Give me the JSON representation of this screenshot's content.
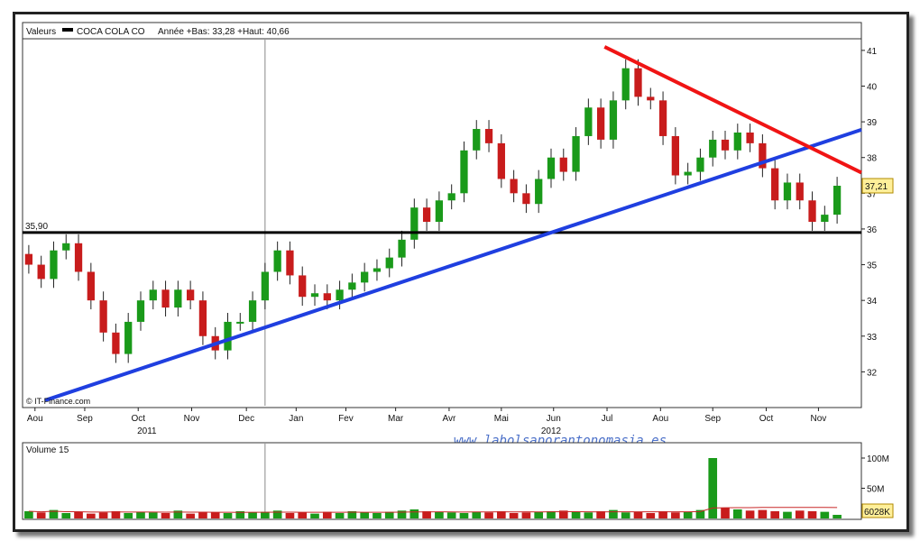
{
  "header": {
    "series_label": "Valeurs",
    "ticker": "COCA COLA CO",
    "range_text": "Année +Bas: 33,28 +Haut: 40,66"
  },
  "copyright": "© IT-Finance.com",
  "watermark": "www.labolsaporantonomasia.es",
  "colors": {
    "up": "#1a9a1a",
    "down": "#c81c1c",
    "support": "#000000",
    "uptrend": "#1f3fe0",
    "downtrend": "#f01414",
    "volume_avg": "#c82828"
  },
  "chart_data": [
    {
      "type": "candlestick",
      "title": "COCA COLA CO",
      "ylim": [
        31.0,
        41.3
      ],
      "y_ticks": [
        32,
        33,
        34,
        35,
        36,
        37,
        38,
        39,
        40,
        41
      ],
      "x_range": [
        0,
        66
      ],
      "x_ticks": [
        {
          "x": 1,
          "label": "Aou"
        },
        {
          "x": 5,
          "label": "Sep"
        },
        {
          "x": 9.3,
          "label": "Oct"
        },
        {
          "x": 13.6,
          "label": "Nov"
        },
        {
          "x": 18,
          "label": "Dec"
        },
        {
          "x": 22,
          "label": "Jan"
        },
        {
          "x": 26,
          "label": "Fev"
        },
        {
          "x": 30,
          "label": "Mar"
        },
        {
          "x": 34.3,
          "label": "Avr"
        },
        {
          "x": 38.5,
          "label": "Mai"
        },
        {
          "x": 42.7,
          "label": "Jun"
        },
        {
          "x": 47,
          "label": "Jul"
        },
        {
          "x": 51.3,
          "label": "Aou"
        },
        {
          "x": 55.5,
          "label": "Sep"
        },
        {
          "x": 59.8,
          "label": "Oct"
        },
        {
          "x": 64,
          "label": "Nov"
        }
      ],
      "year_labels": [
        {
          "x": 10,
          "label": "2011"
        },
        {
          "x": 42.5,
          "label": "2012"
        }
      ],
      "closes": [
        35.0,
        34.6,
        35.4,
        35.6,
        34.8,
        34.0,
        33.1,
        32.5,
        33.4,
        34.0,
        34.3,
        33.8,
        34.3,
        34.0,
        33.0,
        32.6,
        33.4,
        33.4,
        34.0,
        34.8,
        35.4,
        34.7,
        34.1,
        34.2,
        34.0,
        34.3,
        34.5,
        34.8,
        34.9,
        35.2,
        35.7,
        36.6,
        36.2,
        36.8,
        37.0,
        38.2,
        38.8,
        38.4,
        37.4,
        37.0,
        36.7,
        37.4,
        38.0,
        37.6,
        38.6,
        39.4,
        38.5,
        39.6,
        40.5,
        39.7,
        39.6,
        38.6,
        37.5,
        37.6,
        38.0,
        38.5,
        38.2,
        38.7,
        38.4,
        37.7,
        36.8,
        37.3,
        36.8,
        36.2,
        36.4,
        37.21
      ],
      "support_level": 35.9,
      "support_label": "35,90",
      "last_price_label": "37,21",
      "uptrend_line": [
        [
          1.8,
          31.2
        ],
        [
          68.5,
          38.9
        ]
      ],
      "downtrend_line": [
        [
          46.8,
          41.1
        ],
        [
          68.5,
          37.4
        ]
      ]
    },
    {
      "type": "bar",
      "title": "Volume 15",
      "ylim": [
        0,
        100
      ],
      "y_ticks": [
        {
          "v": 50,
          "label": "50M"
        },
        {
          "v": 100,
          "label": "100M"
        }
      ],
      "last_volume_label": "6028K",
      "volumes": [
        12,
        10,
        14,
        9,
        11,
        8,
        10,
        12,
        9,
        11,
        10,
        9,
        13,
        8,
        11,
        10,
        9,
        12,
        10,
        11,
        13,
        9,
        10,
        8,
        11,
        9,
        12,
        10,
        9,
        11,
        13,
        15,
        12,
        11,
        10,
        9,
        11,
        10,
        12,
        9,
        10,
        11,
        12,
        13,
        11,
        10,
        12,
        14,
        10,
        11,
        9,
        12,
        10,
        11,
        14,
        100,
        18,
        15,
        13,
        14,
        12,
        11,
        13,
        12,
        11,
        6
      ]
    }
  ]
}
